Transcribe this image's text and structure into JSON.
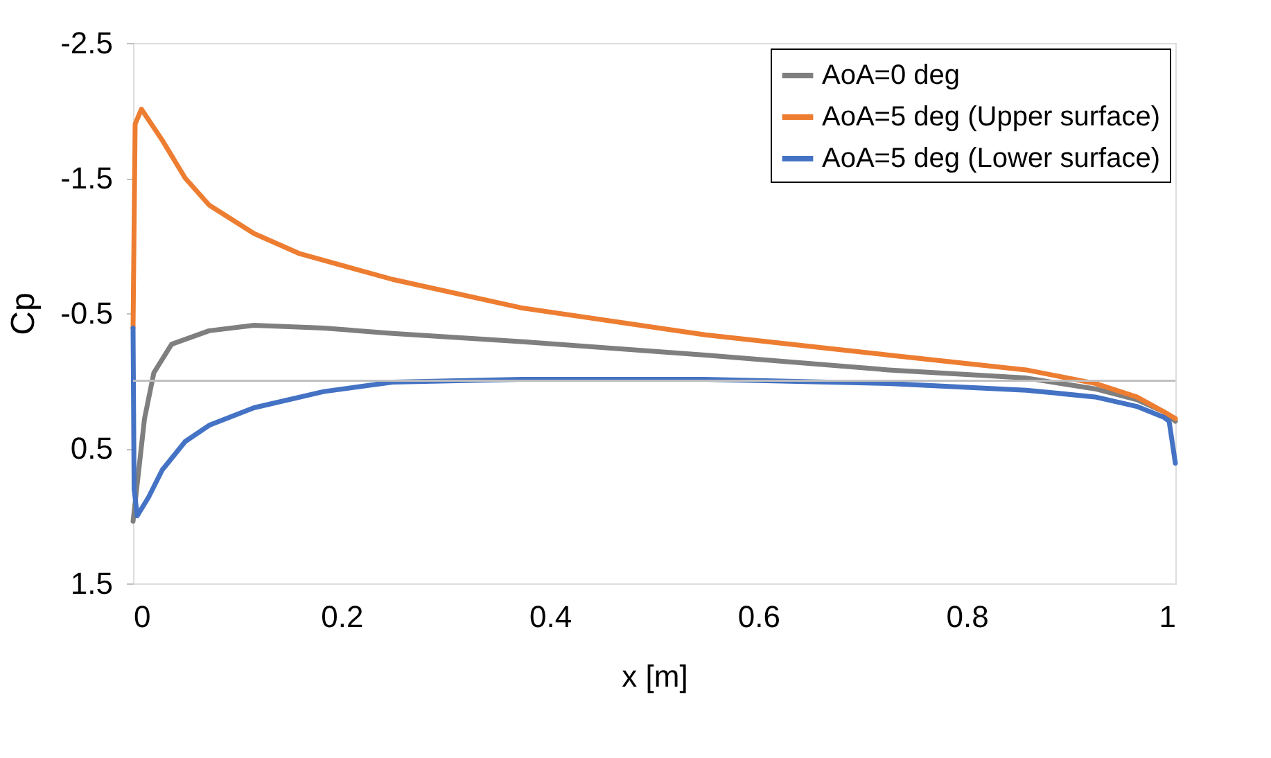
{
  "chart_data": {
    "type": "line",
    "xlabel": "x [m]",
    "ylabel": "Cp",
    "xlim": [
      0,
      1
    ],
    "xticks": [
      0,
      0.2,
      0.4,
      0.6,
      0.8,
      1
    ],
    "ylim": [
      1.5,
      -2.5
    ],
    "yticks": [
      -2.5,
      -1.5,
      -0.5,
      0.5,
      1.5
    ],
    "grid": false,
    "legend": "top right",
    "line_style": "solid",
    "marker": "none",
    "ref_lines": [
      {
        "axis": "y",
        "value": 0,
        "color": "#bfbfbf"
      }
    ],
    "series": [
      {
        "name": "AoA=0 deg",
        "color": "#7f7f7f",
        "x": [
          0,
          0.011,
          0.02,
          0.037,
          0.073,
          0.116,
          0.183,
          0.249,
          0.372,
          0.549,
          0.725,
          0.857,
          0.923,
          0.963,
          0.989,
          1.0
        ],
        "values": [
          1.04,
          0.28,
          -0.06,
          -0.27,
          -0.37,
          -0.41,
          -0.39,
          -0.35,
          -0.29,
          -0.19,
          -0.08,
          -0.02,
          0.06,
          0.14,
          0.23,
          0.3
        ]
      },
      {
        "name": "AoA=5 deg (Upper surface)",
        "color": "#ed7d31",
        "x": [
          0,
          0.002,
          0.008,
          0.028,
          0.05,
          0.073,
          0.116,
          0.16,
          0.249,
          0.372,
          0.549,
          0.725,
          0.857,
          0.923,
          0.963,
          0.989,
          1.0
        ],
        "values": [
          -0.39,
          -1.9,
          -2.01,
          -1.78,
          -1.5,
          -1.3,
          -1.09,
          -0.94,
          -0.75,
          -0.54,
          -0.34,
          -0.19,
          -0.08,
          0.02,
          0.12,
          0.23,
          0.28
        ]
      },
      {
        "name": "AoA=5 deg (Lower surface)",
        "color": "#4472c4",
        "x": [
          0,
          0.001,
          0.004,
          0.015,
          0.028,
          0.05,
          0.073,
          0.116,
          0.183,
          0.249,
          0.372,
          0.549,
          0.725,
          0.857,
          0.923,
          0.963,
          0.989,
          0.994,
          1.0
        ],
        "values": [
          -0.39,
          0.8,
          1.0,
          0.86,
          0.66,
          0.45,
          0.33,
          0.2,
          0.08,
          0.01,
          -0.01,
          -0.01,
          0.02,
          0.07,
          0.12,
          0.19,
          0.27,
          0.3,
          0.61
        ]
      }
    ]
  }
}
